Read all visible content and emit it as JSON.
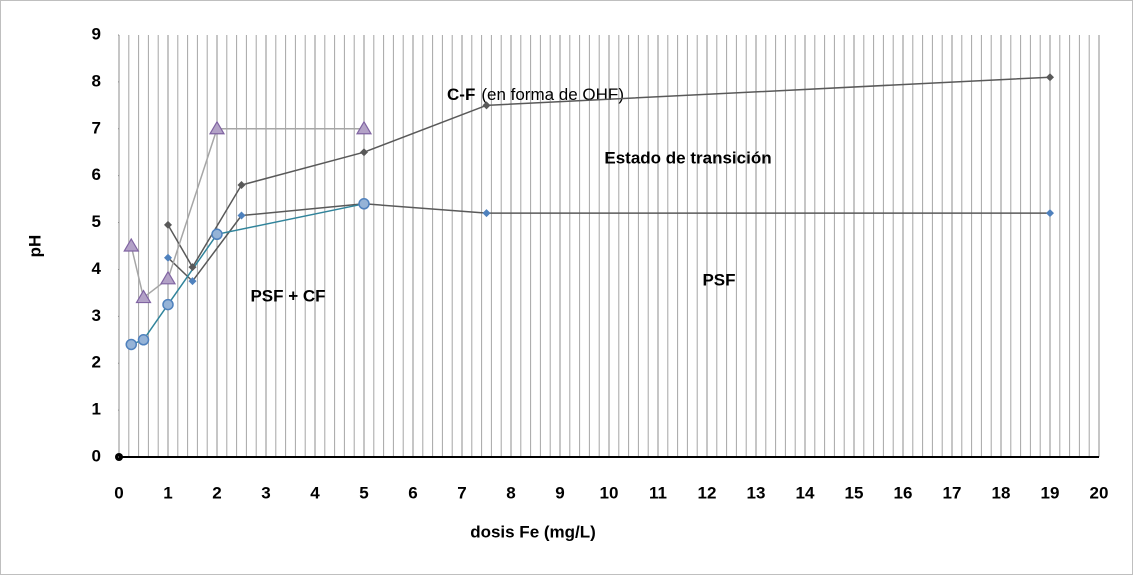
{
  "chart_data": {
    "type": "line",
    "x_label": "dosis Fe (mg/L)",
    "y_label": "pH",
    "xlim": [
      0,
      20
    ],
    "xticks": [
      0,
      1,
      2,
      3,
      4,
      5,
      6,
      7,
      8,
      9,
      10,
      11,
      12,
      13,
      14,
      15,
      16,
      17,
      18,
      19,
      20
    ],
    "ylim": [
      0,
      9
    ],
    "yticks": [
      0,
      1,
      2,
      3,
      4,
      5,
      6,
      7,
      8,
      9
    ],
    "grid": true,
    "x_minor_divisions": 5,
    "series": [
      {
        "marker": "diamond",
        "color": "#595959",
        "line_color": "#595959",
        "x": [
          1,
          1.5,
          2.5,
          5,
          7.5,
          19
        ],
        "values": [
          4.95,
          4.05,
          5.8,
          6.5,
          7.5,
          8.1
        ]
      },
      {
        "marker": "diamond",
        "color": "#4f81bd",
        "line_color": "#595959",
        "x": [
          1,
          1.5,
          2.5,
          5,
          7.5,
          19
        ],
        "values": [
          4.25,
          3.75,
          5.15,
          5.4,
          5.2,
          5.2
        ]
      },
      {
        "marker": "circle",
        "color": "#4f81bd",
        "line_color": "#31849b",
        "x": [
          0.25,
          0.5,
          1,
          2,
          5
        ],
        "values": [
          2.4,
          2.5,
          3.25,
          4.75,
          5.4
        ]
      },
      {
        "marker": "triangle",
        "color": "#8064a2",
        "line_color": "#a6a6a6",
        "x": [
          0.25,
          0.5,
          1,
          2,
          5
        ],
        "values": [
          4.5,
          3.4,
          3.8,
          7,
          7
        ]
      }
    ],
    "annotations": [
      "C-F",
      "(en forma de OHF)",
      "Estado de transición",
      "PSF + CF",
      "PSF"
    ]
  }
}
